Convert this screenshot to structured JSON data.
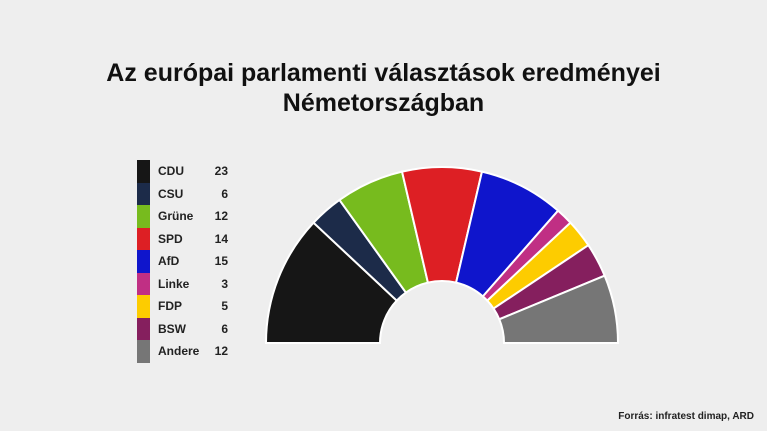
{
  "chart_data": {
    "type": "pie",
    "title": [
      "Az európai parlamenti választások eredményei",
      "Németországban"
    ],
    "categories": [
      "CDU",
      "CSU",
      "Grüne",
      "SPD",
      "AfD",
      "Linke",
      "FDP",
      "BSW",
      "Andere"
    ],
    "values": [
      23,
      6,
      12,
      14,
      15,
      3,
      5,
      6,
      12
    ],
    "colors": [
      "#161616",
      "#1c2b49",
      "#77bb1e",
      "#dd1f24",
      "#0f15cc",
      "#c02f84",
      "#fdcc00",
      "#851f5e",
      "#767676"
    ],
    "legend_position": "left"
  },
  "source": "Forrás: infratest dimap, ARD"
}
